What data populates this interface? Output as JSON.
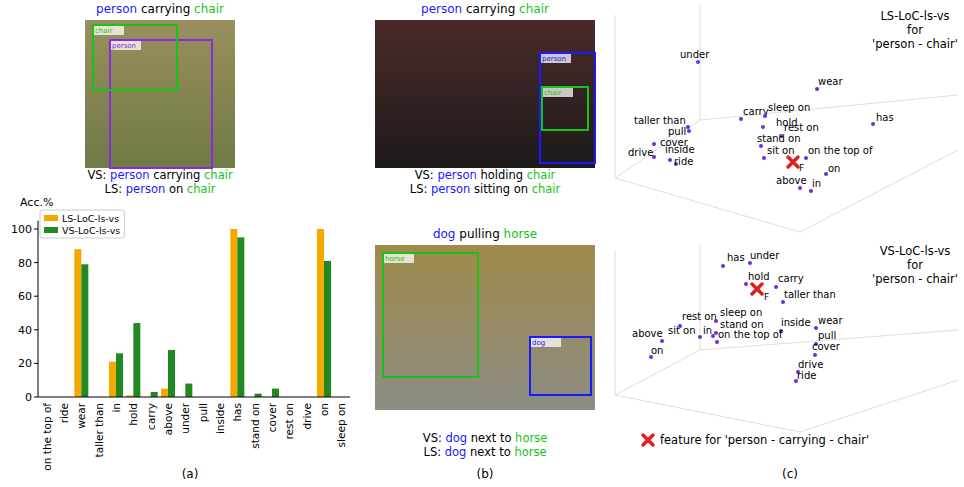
{
  "chart_data": {
    "type": "bar",
    "y_label": "Acc.%",
    "categories": [
      "on the top of",
      "ride",
      "wear",
      "taller than",
      "in",
      "hold",
      "carry",
      "above",
      "under",
      "pull",
      "inside",
      "has",
      "stand on",
      "cover",
      "rest on",
      "drive",
      "on",
      "sleep on"
    ],
    "series": [
      {
        "name": "LS-LoC-ls-vs",
        "color": "#f5a800",
        "values": [
          0,
          0,
          88,
          0,
          21,
          1,
          0,
          5,
          0,
          0,
          0,
          100,
          0,
          0,
          0,
          0,
          100,
          0
        ]
      },
      {
        "name": "VS-LoC-ls-vs",
        "color": "#1f8a1f",
        "values": [
          0,
          0,
          79,
          0,
          26,
          44,
          3,
          28,
          8,
          0,
          0,
          95,
          2,
          5,
          0,
          0,
          81,
          0
        ]
      }
    ],
    "ylim": [
      0,
      105
    ],
    "yticks": [
      0,
      20,
      40,
      60,
      80,
      100
    ],
    "legend": "upper left",
    "grid": false
  },
  "panel_labels": [
    "(a)",
    "(b)",
    "(c)"
  ],
  "images": [
    {
      "title": {
        "subject": "person",
        "predicate": "carrying",
        "object": "chair"
      },
      "box_labels": [
        "person",
        "chair"
      ],
      "captions": [
        {
          "prefix": "VS:",
          "subject": "person",
          "predicate": "carrying",
          "object": "chair"
        },
        {
          "prefix": "LS:",
          "subject": "person",
          "predicate": "on",
          "object": "chair"
        }
      ]
    },
    {
      "title": {
        "subject": "person",
        "predicate": "carrying",
        "object": "chair"
      },
      "box_labels": [
        "person",
        "chair"
      ],
      "captions": [
        {
          "prefix": "VS:",
          "subject": "person",
          "predicate": "holding",
          "object": "chair"
        },
        {
          "prefix": "LS:",
          "subject": "person",
          "predicate": "sitting on",
          "object": "chair"
        }
      ]
    },
    {
      "title": {
        "subject": "dog",
        "predicate": "pulling",
        "object": "horse"
      },
      "box_labels": [
        "dog",
        "horse"
      ],
      "captions": [
        {
          "prefix": "VS:",
          "subject": "dog",
          "predicate": "next to",
          "object": "horse"
        },
        {
          "prefix": "LS:",
          "subject": "dog",
          "predicate": "next to",
          "object": "horse"
        }
      ]
    }
  ],
  "embeddings": [
    {
      "title": [
        "LS-LoC-ls-vs",
        "for",
        "'person - chair'"
      ],
      "feature_label": "F",
      "points": [
        "under",
        "wear",
        "has",
        "taller than",
        "pull",
        "carry",
        "sleep on",
        "hold",
        "rest on",
        "stand on",
        "sit on",
        "on the top of",
        "cover",
        "drive",
        "inside",
        "ride",
        "on",
        "above",
        "in"
      ]
    },
    {
      "title": [
        "VS-LoC-ls-vs",
        "for",
        "'person - chair'"
      ],
      "feature_label": "F",
      "points": [
        "has",
        "under",
        "hold",
        "carry",
        "taller than",
        "rest on",
        "sleep on",
        "stand on",
        "inside",
        "wear",
        "sit on",
        "in",
        "on the top of",
        "above",
        "on",
        "pull",
        "cover",
        "drive",
        "ride"
      ]
    }
  ],
  "feature_legend": "feature for 'person - carrying - chair'"
}
